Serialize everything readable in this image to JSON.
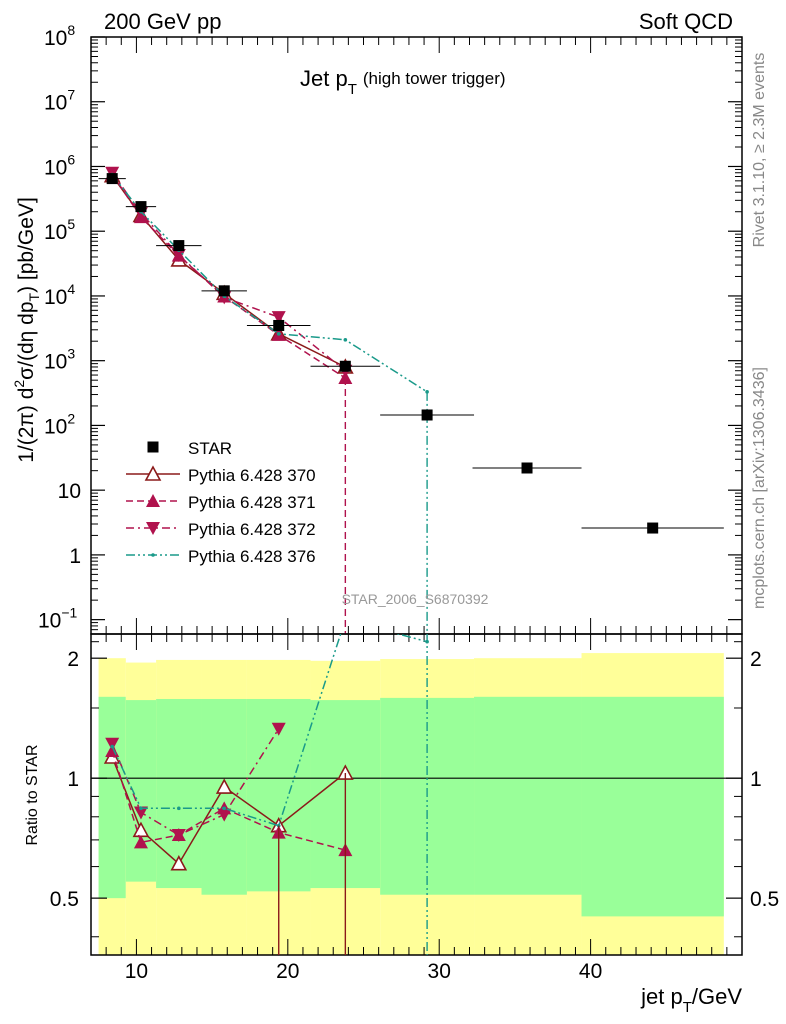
{
  "header": {
    "left": "200 GeV pp",
    "right": "Soft QCD"
  },
  "side_labels": {
    "rivet": "Rivet 3.1.10, ≥ 2.3M events",
    "mcplots": "mcplots.cern.ch [arXiv:1306.3436]"
  },
  "chart_data": [
    {
      "type": "scatter",
      "title_main": "Jet p",
      "title_sub": "T",
      "title_note": "(high tower trigger)",
      "analysis_id": "STAR_2006_S6870392",
      "yscale": "log",
      "ylim": [
        0.06,
        100000000
      ],
      "xlim": [
        7,
        50
      ],
      "ylabel_parts": [
        "1/(2π) d",
        "2",
        "σ/(dη dp",
        "T",
        ") [pb/GeV]"
      ],
      "y_ticks": [
        {
          "v": 0.1,
          "base": "10",
          "exp": "−1"
        },
        {
          "v": 1,
          "base": "1",
          "exp": ""
        },
        {
          "v": 10,
          "base": "10",
          "exp": ""
        },
        {
          "v": 100,
          "base": "10",
          "exp": "2"
        },
        {
          "v": 1000,
          "base": "10",
          "exp": "3"
        },
        {
          "v": 10000,
          "base": "10",
          "exp": "4"
        },
        {
          "v": 100000,
          "base": "10",
          "exp": "5"
        },
        {
          "v": 1000000,
          "base": "10",
          "exp": "6"
        },
        {
          "v": 10000000,
          "base": "10",
          "exp": "7"
        },
        {
          "v": 100000000,
          "base": "10",
          "exp": "8"
        }
      ],
      "legend_position": "bottom-left",
      "series": [
        {
          "name": "STAR",
          "color": "#000000",
          "marker": "square",
          "x": [
            8.4,
            10.3,
            12.8,
            15.8,
            19.4,
            23.8,
            29.2,
            35.8,
            44.1
          ],
          "y": [
            650000,
            240000,
            60000,
            12000,
            3500,
            820,
            145,
            22,
            2.6
          ],
          "xerr": [
            0.9,
            1.0,
            1.5,
            1.5,
            2.1,
            2.3,
            3.1,
            3.6,
            4.7
          ]
        },
        {
          "name": "Pythia 6.428 370",
          "color": "#8b1a1a",
          "marker": "triangle-open",
          "line": "solid",
          "x": [
            8.4,
            10.3,
            12.8,
            15.8,
            19.4,
            23.8
          ],
          "y": [
            720000,
            175000,
            36000,
            11000,
            2600,
            800
          ]
        },
        {
          "name": "Pythia 6.428 371",
          "color": "#b0124d",
          "marker": "triangle-filled",
          "line": "dashed",
          "x": [
            8.4,
            10.3,
            12.8,
            15.8,
            19.4,
            23.8
          ],
          "y": [
            760000,
            165000,
            42000,
            9800,
            2500,
            540
          ]
        },
        {
          "name": "Pythia 6.428 372",
          "color": "#b0124d",
          "marker": "triangle-down",
          "line": "dashdot",
          "x": [
            8.4,
            10.3,
            12.8,
            15.8,
            19.4,
            23.8
          ],
          "y": [
            800000,
            190000,
            43000,
            9500,
            4700,
            700
          ]
        },
        {
          "name": "Pythia 6.428 376",
          "color": "#1a9a8a",
          "marker": "tick",
          "line": "dashdotdot",
          "x": [
            8.4,
            10.3,
            12.8,
            15.8,
            19.4,
            23.8,
            29.2
          ],
          "y": [
            750000,
            200000,
            51000,
            9900,
            2600,
            2100,
            330
          ]
        }
      ]
    },
    {
      "type": "line",
      "ylabel": "Ratio to STAR",
      "xlabel_main": "jet p",
      "xlabel_sub": "T",
      "xlabel_unit": "/GeV",
      "yscale": "log",
      "ylim": [
        0.36,
        2.3
      ],
      "xlim": [
        7,
        50
      ],
      "x_ticks": [
        10,
        20,
        30,
        40
      ],
      "y_ticks": [
        0.5,
        1,
        2
      ],
      "bands": {
        "outer_color": "#ffff99",
        "inner_color": "#99ff99",
        "bins": [
          {
            "x0": 7.5,
            "x1": 9.3,
            "outer": [
              0.45,
              2.0
            ],
            "inner": [
              0.5,
              1.6
            ]
          },
          {
            "x0": 9.3,
            "x1": 11.3,
            "outer": [
              0.45,
              1.95
            ],
            "inner": [
              0.55,
              1.57
            ]
          },
          {
            "x0": 11.3,
            "x1": 14.3,
            "outer": [
              0.45,
              1.98
            ],
            "inner": [
              0.53,
              1.58
            ]
          },
          {
            "x0": 14.3,
            "x1": 17.3,
            "outer": [
              0.45,
              1.98
            ],
            "inner": [
              0.51,
              1.58
            ]
          },
          {
            "x0": 17.3,
            "x1": 21.5,
            "outer": [
              0.45,
              1.98
            ],
            "inner": [
              0.52,
              1.58
            ]
          },
          {
            "x0": 21.5,
            "x1": 26.1,
            "outer": [
              0.45,
              1.97
            ],
            "inner": [
              0.53,
              1.57
            ]
          },
          {
            "x0": 26.1,
            "x1": 32.3,
            "outer": [
              0.45,
              1.99
            ],
            "inner": [
              0.51,
              1.59
            ]
          },
          {
            "x0": 32.3,
            "x1": 39.4,
            "outer": [
              0.45,
              2.0
            ],
            "inner": [
              0.51,
              1.6
            ]
          },
          {
            "x0": 39.4,
            "x1": 48.8,
            "outer": [
              0.45,
              2.06
            ],
            "inner": [
              0.45,
              1.6
            ]
          }
        ]
      },
      "series": [
        {
          "name": "Pythia 6.428 370",
          "x": [
            8.4,
            10.3,
            12.8,
            15.8,
            19.4,
            23.8
          ],
          "y": [
            1.13,
            0.74,
            0.61,
            0.95,
            0.76,
            1.03
          ]
        },
        {
          "name": "Pythia 6.428 371",
          "x": [
            8.4,
            10.3,
            12.8,
            15.8,
            19.4,
            23.8
          ],
          "y": [
            1.17,
            0.69,
            0.72,
            0.84,
            0.73,
            0.66
          ]
        },
        {
          "name": "Pythia 6.428 372",
          "x": [
            8.4,
            10.3,
            12.8,
            15.8,
            19.4,
            23.8
          ],
          "y": [
            1.22,
            0.82,
            0.72,
            0.81,
            1.33,
            null
          ]
        },
        {
          "name": "Pythia 6.428 376",
          "x": [
            8.4,
            10.3,
            12.8,
            15.8,
            19.4,
            23.8,
            29.2
          ],
          "y": [
            1.2,
            0.84,
            0.84,
            0.84,
            0.76,
            2.5,
            2.2
          ]
        }
      ]
    }
  ]
}
